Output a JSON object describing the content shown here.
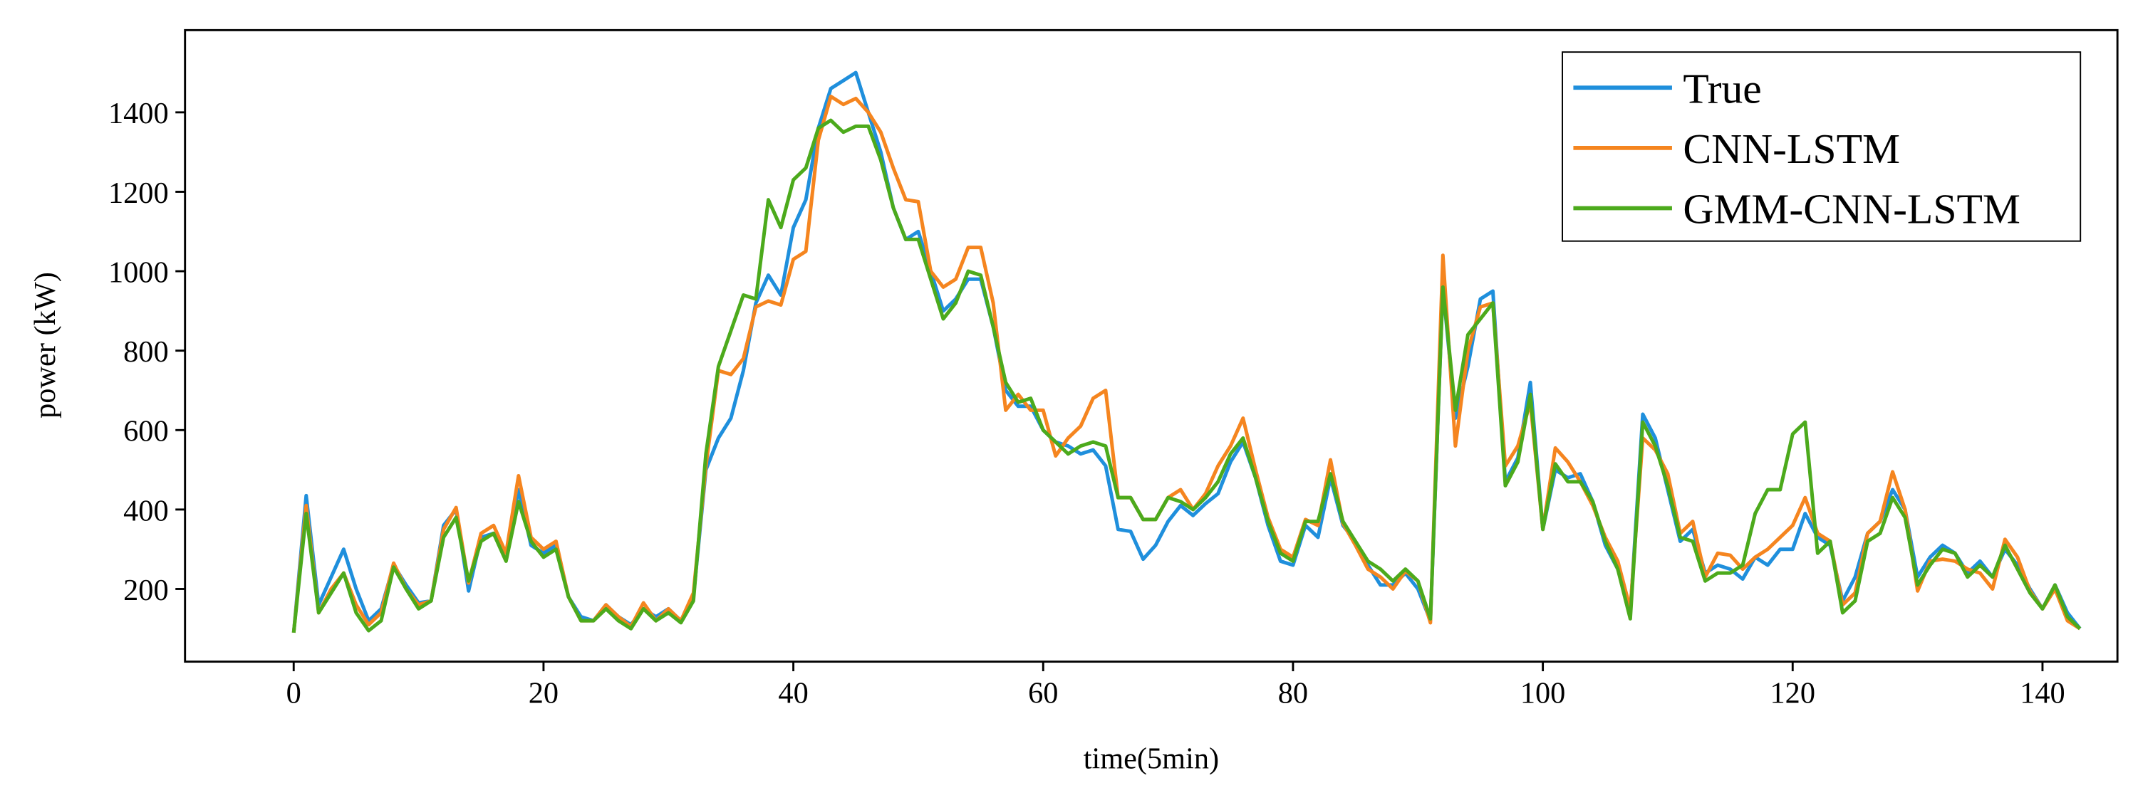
{
  "chart_data": {
    "type": "line",
    "xlabel": "time(5min)",
    "ylabel": "power (kW)",
    "x": [
      0,
      1,
      2,
      3,
      4,
      5,
      6,
      7,
      8,
      9,
      10,
      11,
      12,
      13,
      14,
      15,
      16,
      17,
      18,
      19,
      20,
      21,
      22,
      23,
      24,
      25,
      26,
      27,
      28,
      29,
      30,
      31,
      32,
      33,
      34,
      35,
      36,
      37,
      38,
      39,
      40,
      41,
      42,
      43,
      44,
      45,
      46,
      47,
      48,
      49,
      50,
      51,
      52,
      53,
      54,
      55,
      56,
      57,
      58,
      59,
      60,
      61,
      62,
      63,
      64,
      65,
      66,
      67,
      68,
      69,
      70,
      71,
      72,
      73,
      74,
      75,
      76,
      77,
      78,
      79,
      80,
      81,
      82,
      83,
      84,
      85,
      86,
      87,
      88,
      89,
      90,
      91,
      92,
      93,
      94,
      95,
      96,
      97,
      98,
      99,
      100,
      101,
      102,
      103,
      104,
      105,
      106,
      107,
      108,
      109,
      110,
      111,
      112,
      113,
      114,
      115,
      116,
      117,
      118,
      119,
      120,
      121,
      122,
      123,
      124,
      125,
      126,
      127,
      128,
      129,
      130,
      131,
      132,
      133,
      134,
      135,
      136,
      137,
      138,
      139,
      140,
      141,
      142,
      143
    ],
    "series": [
      {
        "name": "True",
        "color": "#1f8fdc",
        "values": [
          90,
          435,
          160,
          230,
          300,
          200,
          120,
          150,
          260,
          210,
          165,
          170,
          360,
          400,
          195,
          330,
          340,
          290,
          450,
          310,
          290,
          310,
          180,
          130,
          120,
          160,
          130,
          110,
          150,
          130,
          150,
          120,
          180,
          500,
          580,
          630,
          750,
          920,
          990,
          940,
          1110,
          1180,
          1360,
          1460,
          1480,
          1500,
          1400,
          1300,
          1160,
          1080,
          1100,
          1000,
          900,
          930,
          980,
          980,
          860,
          700,
          660,
          660,
          600,
          570,
          560,
          540,
          550,
          510,
          350,
          345,
          275,
          310,
          370,
          410,
          385,
          415,
          440,
          520,
          570,
          480,
          360,
          270,
          260,
          360,
          330,
          480,
          360,
          320,
          260,
          210,
          210,
          240,
          200,
          120,
          960,
          630,
          760,
          930,
          950,
          470,
          530,
          720,
          350,
          500,
          480,
          490,
          420,
          310,
          250,
          140,
          640,
          580,
          450,
          320,
          350,
          240,
          260,
          250,
          225,
          280,
          260,
          300,
          300,
          390,
          330,
          310,
          170,
          230,
          340,
          370,
          450,
          400,
          230,
          280,
          310,
          290,
          240,
          270,
          230,
          300,
          260,
          200,
          150,
          210,
          140,
          100
        ]
      },
      {
        "name": "CNN-LSTM",
        "color": "#f5851f",
        "values": [
          90,
          410,
          140,
          200,
          240,
          160,
          110,
          140,
          265,
          200,
          160,
          170,
          350,
          405,
          215,
          340,
          360,
          290,
          485,
          330,
          300,
          320,
          180,
          120,
          120,
          160,
          130,
          105,
          165,
          120,
          150,
          120,
          190,
          510,
          750,
          740,
          780,
          910,
          925,
          915,
          1030,
          1050,
          1330,
          1440,
          1420,
          1435,
          1400,
          1350,
          1260,
          1180,
          1175,
          1000,
          960,
          980,
          1060,
          1060,
          920,
          650,
          690,
          650,
          650,
          535,
          580,
          610,
          680,
          700,
          430,
          430,
          375,
          375,
          430,
          450,
          400,
          440,
          510,
          560,
          630,
          500,
          380,
          300,
          280,
          375,
          360,
          525,
          365,
          310,
          250,
          230,
          200,
          245,
          220,
          115,
          1040,
          560,
          800,
          910,
          920,
          510,
          560,
          670,
          350,
          555,
          520,
          470,
          410,
          330,
          270,
          150,
          580,
          550,
          490,
          340,
          370,
          230,
          290,
          285,
          250,
          280,
          300,
          330,
          360,
          430,
          340,
          320,
          160,
          190,
          340,
          370,
          495,
          400,
          195,
          270,
          275,
          270,
          250,
          240,
          200,
          325,
          280,
          195,
          150,
          200,
          120,
          100
        ]
      },
      {
        "name": "GMM-CNN-LSTM",
        "color": "#4caa1c",
        "values": [
          90,
          390,
          140,
          190,
          240,
          140,
          95,
          120,
          255,
          200,
          150,
          170,
          330,
          380,
          220,
          320,
          340,
          270,
          420,
          320,
          280,
          300,
          180,
          120,
          120,
          150,
          120,
          100,
          150,
          120,
          140,
          115,
          170,
          540,
          760,
          850,
          940,
          930,
          1180,
          1110,
          1230,
          1260,
          1360,
          1380,
          1350,
          1365,
          1365,
          1280,
          1160,
          1080,
          1080,
          980,
          880,
          920,
          1000,
          990,
          860,
          720,
          670,
          680,
          600,
          570,
          540,
          560,
          570,
          560,
          430,
          430,
          375,
          375,
          430,
          420,
          400,
          430,
          470,
          540,
          580,
          480,
          370,
          290,
          270,
          370,
          370,
          490,
          370,
          320,
          270,
          250,
          220,
          250,
          220,
          125,
          960,
          650,
          840,
          880,
          920,
          460,
          520,
          690,
          350,
          515,
          470,
          470,
          420,
          320,
          250,
          125,
          620,
          560,
          460,
          330,
          320,
          220,
          240,
          240,
          260,
          390,
          450,
          450,
          590,
          620,
          290,
          320,
          140,
          170,
          320,
          340,
          430,
          380,
          210,
          260,
          300,
          290,
          230,
          260,
          230,
          310,
          250,
          190,
          150,
          210,
          130,
          100
        ]
      }
    ],
    "xlim": [
      -8.7,
      146
    ],
    "xticks": [
      0,
      20,
      40,
      60,
      80,
      100,
      120,
      140
    ],
    "ylim": [
      17,
      1607
    ],
    "yticks": [
      200,
      400,
      600,
      800,
      1000,
      1200,
      1400
    ],
    "legend": "upper right",
    "grid": false
  }
}
